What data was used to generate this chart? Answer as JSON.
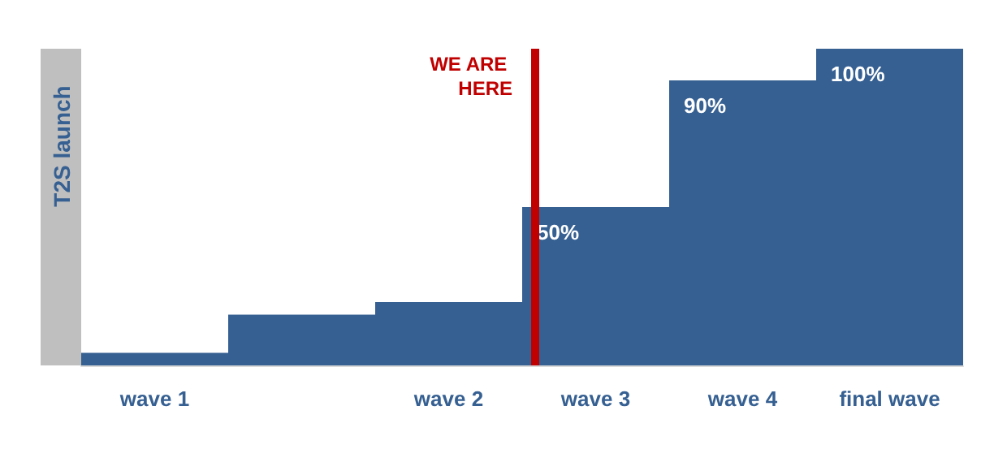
{
  "chart_data": {
    "type": "bar",
    "tick_labels": "x",
    "categories": [
      "wave 1",
      null,
      "wave 2",
      "wave 3",
      "wave 4",
      "final wave"
    ],
    "values": [
      4,
      16,
      20,
      50,
      90,
      100
    ],
    "value_labels": [
      null,
      null,
      null,
      "50%",
      "90%",
      "100%"
    ],
    "color": "#366092",
    "ref_lines": [
      {
        "axis": "x",
        "value": "wave 3",
        "label": "WE ARE HERE",
        "color": "#c00000"
      }
    ],
    "annotations": [
      "T2S launch"
    ],
    "grid": false
  }
}
